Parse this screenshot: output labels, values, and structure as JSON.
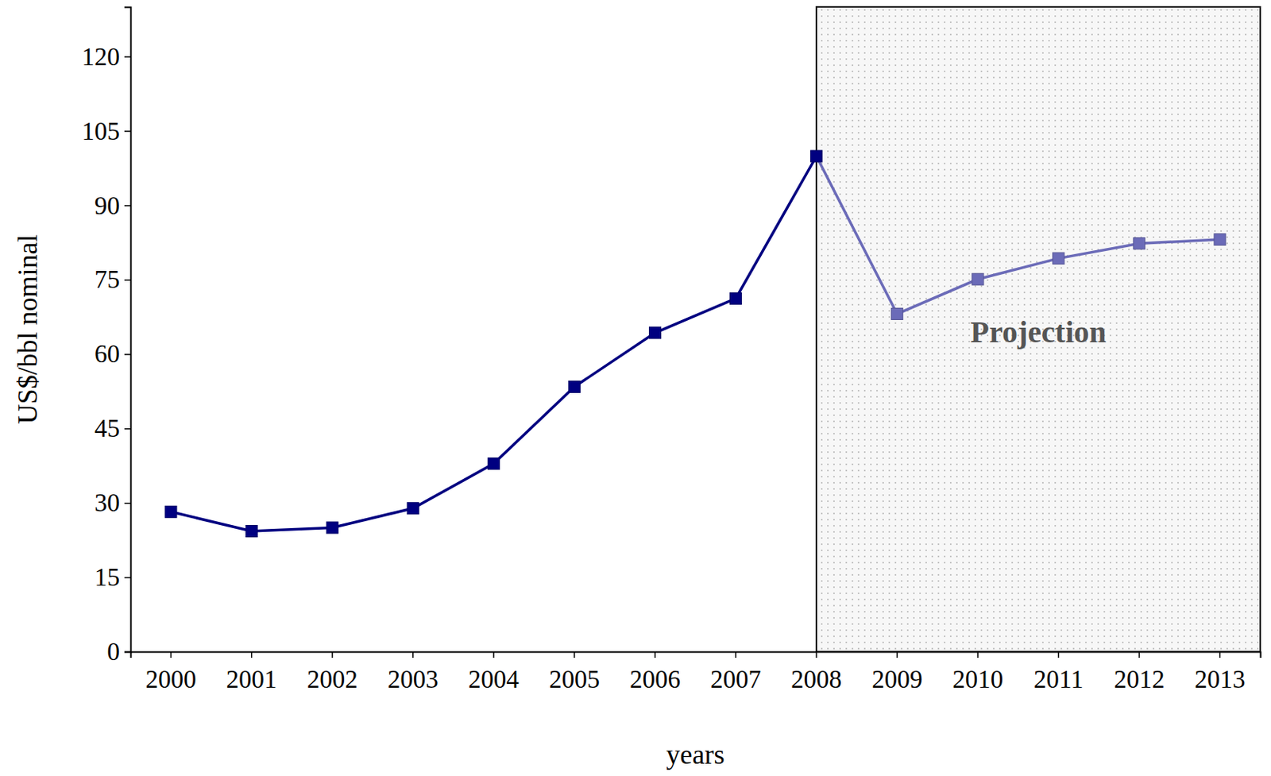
{
  "chart_data": {
    "type": "line",
    "categories": [
      "2000",
      "2001",
      "2002",
      "2003",
      "2004",
      "2005",
      "2006",
      "2007",
      "2008",
      "2009",
      "2010",
      "2011",
      "2012",
      "2013"
    ],
    "values": [
      28.2,
      24.3,
      25.0,
      28.9,
      37.9,
      53.4,
      64.3,
      71.2,
      99.9,
      68.1,
      75.1,
      79.3,
      82.3,
      83.1
    ],
    "colors": [
      "#000080",
      "#000080",
      "#000080",
      "#000080",
      "#000080",
      "#000080",
      "#000080",
      "#000080",
      "#000080",
      "#6b6bb8",
      "#6b6bb8",
      "#6b6bb8",
      "#6b6bb8",
      "#6b6bb8"
    ],
    "marker": "square",
    "ylim": [
      0,
      130
    ],
    "yticks": [
      0,
      15,
      30,
      45,
      60,
      75,
      90,
      105,
      120
    ],
    "y_label": "US$/bbl nominal",
    "x_label": "years",
    "annotations": [
      {
        "text": "Projection",
        "x": "2008"
      }
    ]
  }
}
